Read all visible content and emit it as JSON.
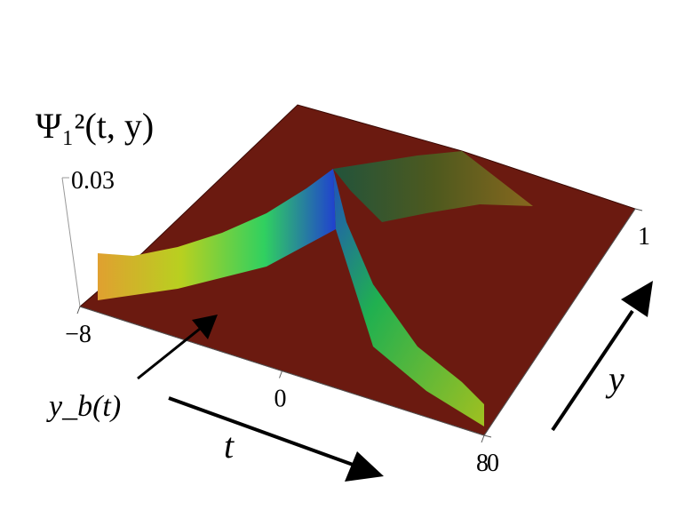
{
  "chart_data": {
    "type": "surface",
    "title": "Ψ₁²(t, y)",
    "xlabel": "t",
    "ylabel": "y",
    "annotation": "y_b(t)",
    "xlim": [
      -8,
      8
    ],
    "xticks": [
      {
        "value": -8,
        "label": "−8"
      },
      0,
      8
    ],
    "ylim": [
      0,
      1
    ],
    "yticks": [
      0,
      1
    ],
    "zticks": [
      0.03
    ],
    "color": "#6b1a10"
  }
}
